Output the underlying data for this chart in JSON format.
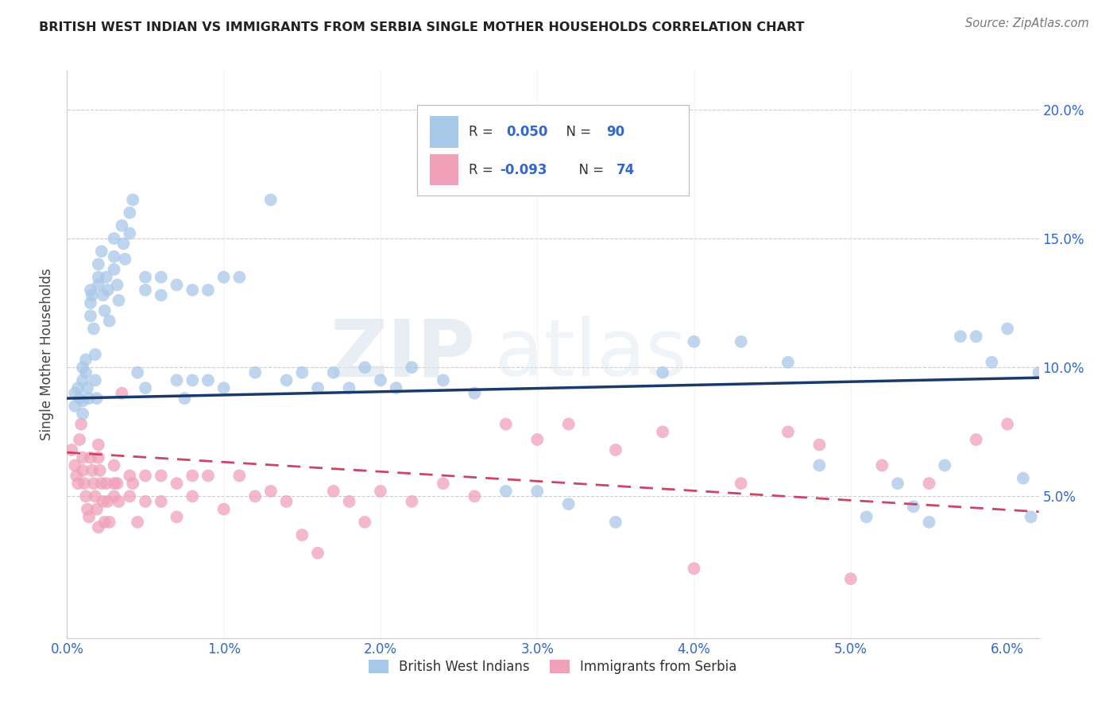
{
  "title": "BRITISH WEST INDIAN VS IMMIGRANTS FROM SERBIA SINGLE MOTHER HOUSEHOLDS CORRELATION CHART",
  "source": "Source: ZipAtlas.com",
  "ylabel": "Single Mother Households",
  "xlim": [
    0.0,
    0.062
  ],
  "ylim": [
    -0.005,
    0.215
  ],
  "blue_color": "#A8C8E8",
  "blue_line_color": "#1A3A6A",
  "pink_color": "#F0A0B8",
  "pink_line_color": "#CC4466",
  "watermark_zip": "ZIP",
  "watermark_atlas": "atlas",
  "legend_label1": "British West Indians",
  "legend_label2": "Immigrants from Serbia",
  "blue_trendline_x": [
    0.0,
    0.062
  ],
  "blue_trendline_y": [
    0.088,
    0.096
  ],
  "pink_trendline_x": [
    0.0,
    0.062
  ],
  "pink_trendline_y": [
    0.067,
    0.044
  ],
  "blue_scatter_x": [
    0.0005,
    0.0005,
    0.0007,
    0.0008,
    0.001,
    0.001,
    0.001,
    0.001,
    0.0012,
    0.0012,
    0.0013,
    0.0014,
    0.0015,
    0.0015,
    0.0015,
    0.0016,
    0.0017,
    0.0018,
    0.0018,
    0.0019,
    0.002,
    0.002,
    0.002,
    0.0022,
    0.0023,
    0.0024,
    0.0025,
    0.0026,
    0.0027,
    0.003,
    0.003,
    0.003,
    0.0032,
    0.0033,
    0.0035,
    0.0036,
    0.0037,
    0.004,
    0.004,
    0.0042,
    0.0045,
    0.005,
    0.005,
    0.005,
    0.006,
    0.006,
    0.007,
    0.007,
    0.0075,
    0.008,
    0.008,
    0.009,
    0.009,
    0.01,
    0.01,
    0.011,
    0.012,
    0.013,
    0.014,
    0.015,
    0.016,
    0.017,
    0.018,
    0.019,
    0.02,
    0.021,
    0.022,
    0.024,
    0.026,
    0.028,
    0.03,
    0.032,
    0.035,
    0.038,
    0.04,
    0.043,
    0.046,
    0.048,
    0.051,
    0.053,
    0.054,
    0.055,
    0.056,
    0.057,
    0.058,
    0.059,
    0.06,
    0.061,
    0.0615,
    0.062
  ],
  "blue_scatter_y": [
    0.09,
    0.085,
    0.092,
    0.088,
    0.095,
    0.1,
    0.087,
    0.082,
    0.098,
    0.103,
    0.092,
    0.088,
    0.13,
    0.125,
    0.12,
    0.128,
    0.115,
    0.105,
    0.095,
    0.088,
    0.14,
    0.135,
    0.132,
    0.145,
    0.128,
    0.122,
    0.135,
    0.13,
    0.118,
    0.15,
    0.143,
    0.138,
    0.132,
    0.126,
    0.155,
    0.148,
    0.142,
    0.16,
    0.152,
    0.165,
    0.098,
    0.135,
    0.13,
    0.092,
    0.135,
    0.128,
    0.132,
    0.095,
    0.088,
    0.095,
    0.13,
    0.095,
    0.13,
    0.135,
    0.092,
    0.135,
    0.098,
    0.165,
    0.095,
    0.098,
    0.092,
    0.098,
    0.092,
    0.1,
    0.095,
    0.092,
    0.1,
    0.095,
    0.09,
    0.052,
    0.052,
    0.047,
    0.04,
    0.098,
    0.11,
    0.11,
    0.102,
    0.062,
    0.042,
    0.055,
    0.046,
    0.04,
    0.062,
    0.112,
    0.112,
    0.102,
    0.115,
    0.057,
    0.042,
    0.098
  ],
  "pink_scatter_x": [
    0.0003,
    0.0005,
    0.0006,
    0.0007,
    0.0008,
    0.0009,
    0.001,
    0.001,
    0.0011,
    0.0012,
    0.0013,
    0.0014,
    0.0015,
    0.0016,
    0.0017,
    0.0018,
    0.0019,
    0.002,
    0.002,
    0.002,
    0.0021,
    0.0022,
    0.0023,
    0.0024,
    0.0025,
    0.0026,
    0.0027,
    0.003,
    0.003,
    0.003,
    0.0032,
    0.0033,
    0.0035,
    0.004,
    0.004,
    0.0042,
    0.0045,
    0.005,
    0.005,
    0.006,
    0.006,
    0.007,
    0.007,
    0.008,
    0.008,
    0.009,
    0.01,
    0.011,
    0.012,
    0.013,
    0.014,
    0.015,
    0.016,
    0.017,
    0.018,
    0.019,
    0.02,
    0.022,
    0.024,
    0.026,
    0.028,
    0.03,
    0.032,
    0.035,
    0.038,
    0.04,
    0.043,
    0.046,
    0.048,
    0.05,
    0.052,
    0.055,
    0.058,
    0.06
  ],
  "pink_scatter_y": [
    0.068,
    0.062,
    0.058,
    0.055,
    0.072,
    0.078,
    0.065,
    0.06,
    0.055,
    0.05,
    0.045,
    0.042,
    0.065,
    0.06,
    0.055,
    0.05,
    0.045,
    0.07,
    0.065,
    0.038,
    0.06,
    0.055,
    0.048,
    0.04,
    0.055,
    0.048,
    0.04,
    0.062,
    0.055,
    0.05,
    0.055,
    0.048,
    0.09,
    0.058,
    0.05,
    0.055,
    0.04,
    0.058,
    0.048,
    0.058,
    0.048,
    0.055,
    0.042,
    0.058,
    0.05,
    0.058,
    0.045,
    0.058,
    0.05,
    0.052,
    0.048,
    0.035,
    0.028,
    0.052,
    0.048,
    0.04,
    0.052,
    0.048,
    0.055,
    0.05,
    0.078,
    0.072,
    0.078,
    0.068,
    0.075,
    0.022,
    0.055,
    0.075,
    0.07,
    0.018,
    0.062,
    0.055,
    0.072,
    0.078
  ]
}
